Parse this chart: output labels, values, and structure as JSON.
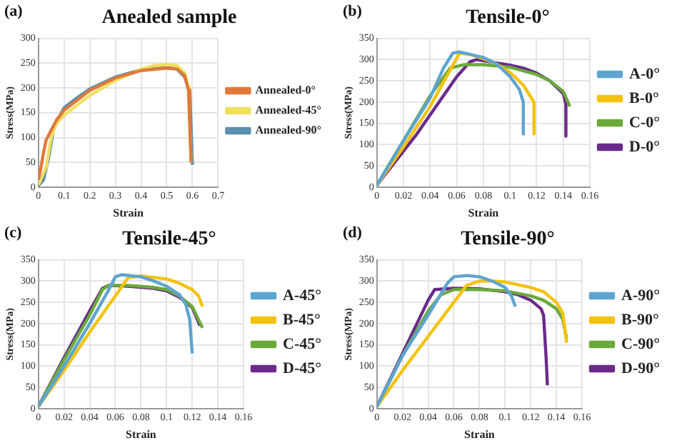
{
  "chart_data": [
    {
      "type": "line",
      "title": "Anealed sample",
      "xlabel": "Strain",
      "ylabel": "Stress(MPa)",
      "annotations": [
        "(a)"
      ],
      "xlim": [
        0,
        0.7
      ],
      "xticks": [
        0,
        0.1,
        0.2,
        0.3,
        0.4,
        0.5,
        0.6,
        0.7
      ],
      "ylim": [
        0,
        300
      ],
      "yticks": [
        0,
        50,
        100,
        150,
        200,
        250,
        300
      ],
      "grid": true,
      "legend": "right",
      "series": [
        {
          "name": "Annealed-0°",
          "color": "#e0793a",
          "x": [
            0,
            0.01,
            0.02,
            0.03,
            0.05,
            0.07,
            0.1,
            0.15,
            0.2,
            0.3,
            0.4,
            0.5,
            0.54,
            0.57,
            0.585,
            0.59,
            0.595
          ],
          "values": [
            15,
            40,
            70,
            95,
            115,
            135,
            155,
            175,
            195,
            220,
            235,
            240,
            238,
            225,
            195,
            120,
            50
          ]
        },
        {
          "name": "Annealed-45°",
          "color": "#f0e060",
          "x": [
            0,
            0.03,
            0.05,
            0.07,
            0.1,
            0.15,
            0.2,
            0.3,
            0.4,
            0.45,
            0.5,
            0.54,
            0.57,
            0.585,
            0.59,
            0.595
          ],
          "values": [
            5,
            40,
            100,
            128,
            145,
            165,
            185,
            215,
            238,
            245,
            247,
            245,
            230,
            200,
            120,
            50
          ]
        },
        {
          "name": "Annealed-90°",
          "color": "#5b8fb0",
          "x": [
            0,
            0.02,
            0.04,
            0.06,
            0.1,
            0.15,
            0.2,
            0.3,
            0.4,
            0.5,
            0.54,
            0.57,
            0.59,
            0.595,
            0.6
          ],
          "values": [
            3,
            15,
            60,
            120,
            160,
            180,
            198,
            222,
            237,
            241,
            238,
            222,
            190,
            120,
            45
          ]
        }
      ]
    },
    {
      "type": "line",
      "title": "Tensile-0°",
      "xlabel": "Strain",
      "ylabel": "Stress(MPa)",
      "annotations": [
        "(b)"
      ],
      "xlim": [
        0,
        0.16
      ],
      "xticks": [
        0,
        0.02,
        0.04,
        0.06,
        0.08,
        0.1,
        0.12,
        0.14,
        0.16
      ],
      "ylim": [
        0,
        350
      ],
      "yticks": [
        0,
        50,
        100,
        150,
        200,
        250,
        300,
        350
      ],
      "grid": true,
      "legend": "right",
      "series": [
        {
          "name": "A-0°",
          "color": "#5ea4d0",
          "x": [
            0,
            0.02,
            0.04,
            0.05,
            0.057,
            0.062,
            0.07,
            0.08,
            0.09,
            0.1,
            0.107,
            0.11,
            0.11
          ],
          "values": [
            5,
            110,
            210,
            280,
            315,
            318,
            312,
            305,
            290,
            260,
            230,
            200,
            125
          ]
        },
        {
          "name": "B-0°",
          "color": "#f4c20d",
          "x": [
            0,
            0.02,
            0.04,
            0.055,
            0.062,
            0.07,
            0.08,
            0.09,
            0.1,
            0.11,
            0.115,
            0.118,
            0.118
          ],
          "values": [
            5,
            95,
            190,
            275,
            315,
            312,
            302,
            290,
            270,
            240,
            215,
            200,
            125
          ]
        },
        {
          "name": "C-0°",
          "color": "#6aaa3a",
          "x": [
            0,
            0.02,
            0.04,
            0.055,
            0.065,
            0.08,
            0.1,
            0.12,
            0.13,
            0.14,
            0.145
          ],
          "values": [
            5,
            110,
            215,
            280,
            288,
            288,
            282,
            265,
            250,
            225,
            190
          ]
        },
        {
          "name": "D-0°",
          "color": "#6a2a8a",
          "x": [
            0,
            0.01,
            0.02,
            0.03,
            0.04,
            0.05,
            0.06,
            0.07,
            0.075,
            0.09,
            0.1,
            0.11,
            0.12,
            0.13,
            0.14,
            0.142,
            0.142
          ],
          "values": [
            5,
            45,
            85,
            125,
            170,
            215,
            260,
            295,
            300,
            292,
            287,
            280,
            268,
            250,
            220,
            195,
            120
          ]
        }
      ]
    },
    {
      "type": "line",
      "title": "Tensile-45°",
      "xlabel": "Strain",
      "ylabel": "Stress(MPa)",
      "annotations": [
        "(c)"
      ],
      "xlim": [
        0,
        0.16
      ],
      "xticks": [
        0,
        0.02,
        0.04,
        0.06,
        0.08,
        0.1,
        0.12,
        0.14,
        0.16
      ],
      "ylim": [
        0,
        350
      ],
      "yticks": [
        0,
        50,
        100,
        150,
        200,
        250,
        300,
        350
      ],
      "grid": true,
      "legend": "right",
      "series": [
        {
          "name": "A-45°",
          "color": "#5ea4d0",
          "x": [
            0,
            0.02,
            0.04,
            0.055,
            0.06,
            0.065,
            0.08,
            0.09,
            0.1,
            0.11,
            0.115,
            0.118,
            0.12
          ],
          "values": [
            5,
            100,
            200,
            280,
            310,
            315,
            310,
            300,
            288,
            268,
            245,
            210,
            130
          ]
        },
        {
          "name": "B-45°",
          "color": "#f4c20d",
          "x": [
            0,
            0.02,
            0.04,
            0.06,
            0.07,
            0.08,
            0.1,
            0.11,
            0.12,
            0.125,
            0.128
          ],
          "values": [
            5,
            90,
            180,
            265,
            308,
            312,
            305,
            295,
            280,
            265,
            240
          ]
        },
        {
          "name": "C-45°",
          "color": "#6aaa3a",
          "x": [
            0,
            0.02,
            0.04,
            0.05,
            0.055,
            0.07,
            0.09,
            0.1,
            0.11,
            0.12,
            0.128
          ],
          "values": [
            5,
            115,
            220,
            280,
            290,
            290,
            285,
            280,
            265,
            240,
            190
          ]
        },
        {
          "name": "D-45°",
          "color": "#6a2a8a",
          "x": [
            0,
            0.02,
            0.04,
            0.05,
            0.055,
            0.07,
            0.09,
            0.1,
            0.11,
            0.12,
            0.126
          ],
          "values": [
            5,
            120,
            230,
            283,
            290,
            288,
            283,
            277,
            262,
            238,
            195
          ]
        }
      ]
    },
    {
      "type": "line",
      "title": "Tensile-90°",
      "xlabel": "Strain",
      "ylabel": "Stress(MPa)",
      "annotations": [
        "(d)"
      ],
      "xlim": [
        0,
        0.16
      ],
      "xticks": [
        0,
        0.02,
        0.04,
        0.06,
        0.08,
        0.1,
        0.12,
        0.14,
        0.16
      ],
      "ylim": [
        0,
        350
      ],
      "yticks": [
        0,
        50,
        100,
        150,
        200,
        250,
        300,
        350
      ],
      "grid": true,
      "legend": "right",
      "series": [
        {
          "name": "A-90°",
          "color": "#5ea4d0",
          "x": [
            0,
            0.02,
            0.04,
            0.055,
            0.06,
            0.07,
            0.08,
            0.09,
            0.1,
            0.105,
            0.108
          ],
          "values": [
            5,
            125,
            220,
            295,
            310,
            313,
            310,
            300,
            285,
            265,
            240
          ]
        },
        {
          "name": "B-90°",
          "color": "#f4c20d",
          "x": [
            0,
            0.02,
            0.04,
            0.06,
            0.07,
            0.08,
            0.09,
            0.1,
            0.12,
            0.13,
            0.14,
            0.145,
            0.148
          ],
          "values": [
            5,
            90,
            170,
            250,
            290,
            300,
            300,
            298,
            285,
            275,
            250,
            225,
            155
          ]
        },
        {
          "name": "C-90°",
          "color": "#6aaa3a",
          "x": [
            0,
            0.02,
            0.04,
            0.05,
            0.06,
            0.08,
            0.1,
            0.12,
            0.13,
            0.14,
            0.145,
            0.148
          ],
          "values": [
            5,
            125,
            230,
            268,
            280,
            280,
            277,
            265,
            255,
            235,
            210,
            165
          ]
        },
        {
          "name": "D-90°",
          "color": "#6a2a8a",
          "x": [
            0,
            0.02,
            0.04,
            0.045,
            0.06,
            0.08,
            0.1,
            0.11,
            0.12,
            0.128,
            0.13,
            0.132,
            0.133
          ],
          "values": [
            5,
            130,
            255,
            280,
            283,
            282,
            275,
            268,
            255,
            235,
            220,
            120,
            55
          ]
        }
      ]
    }
  ]
}
